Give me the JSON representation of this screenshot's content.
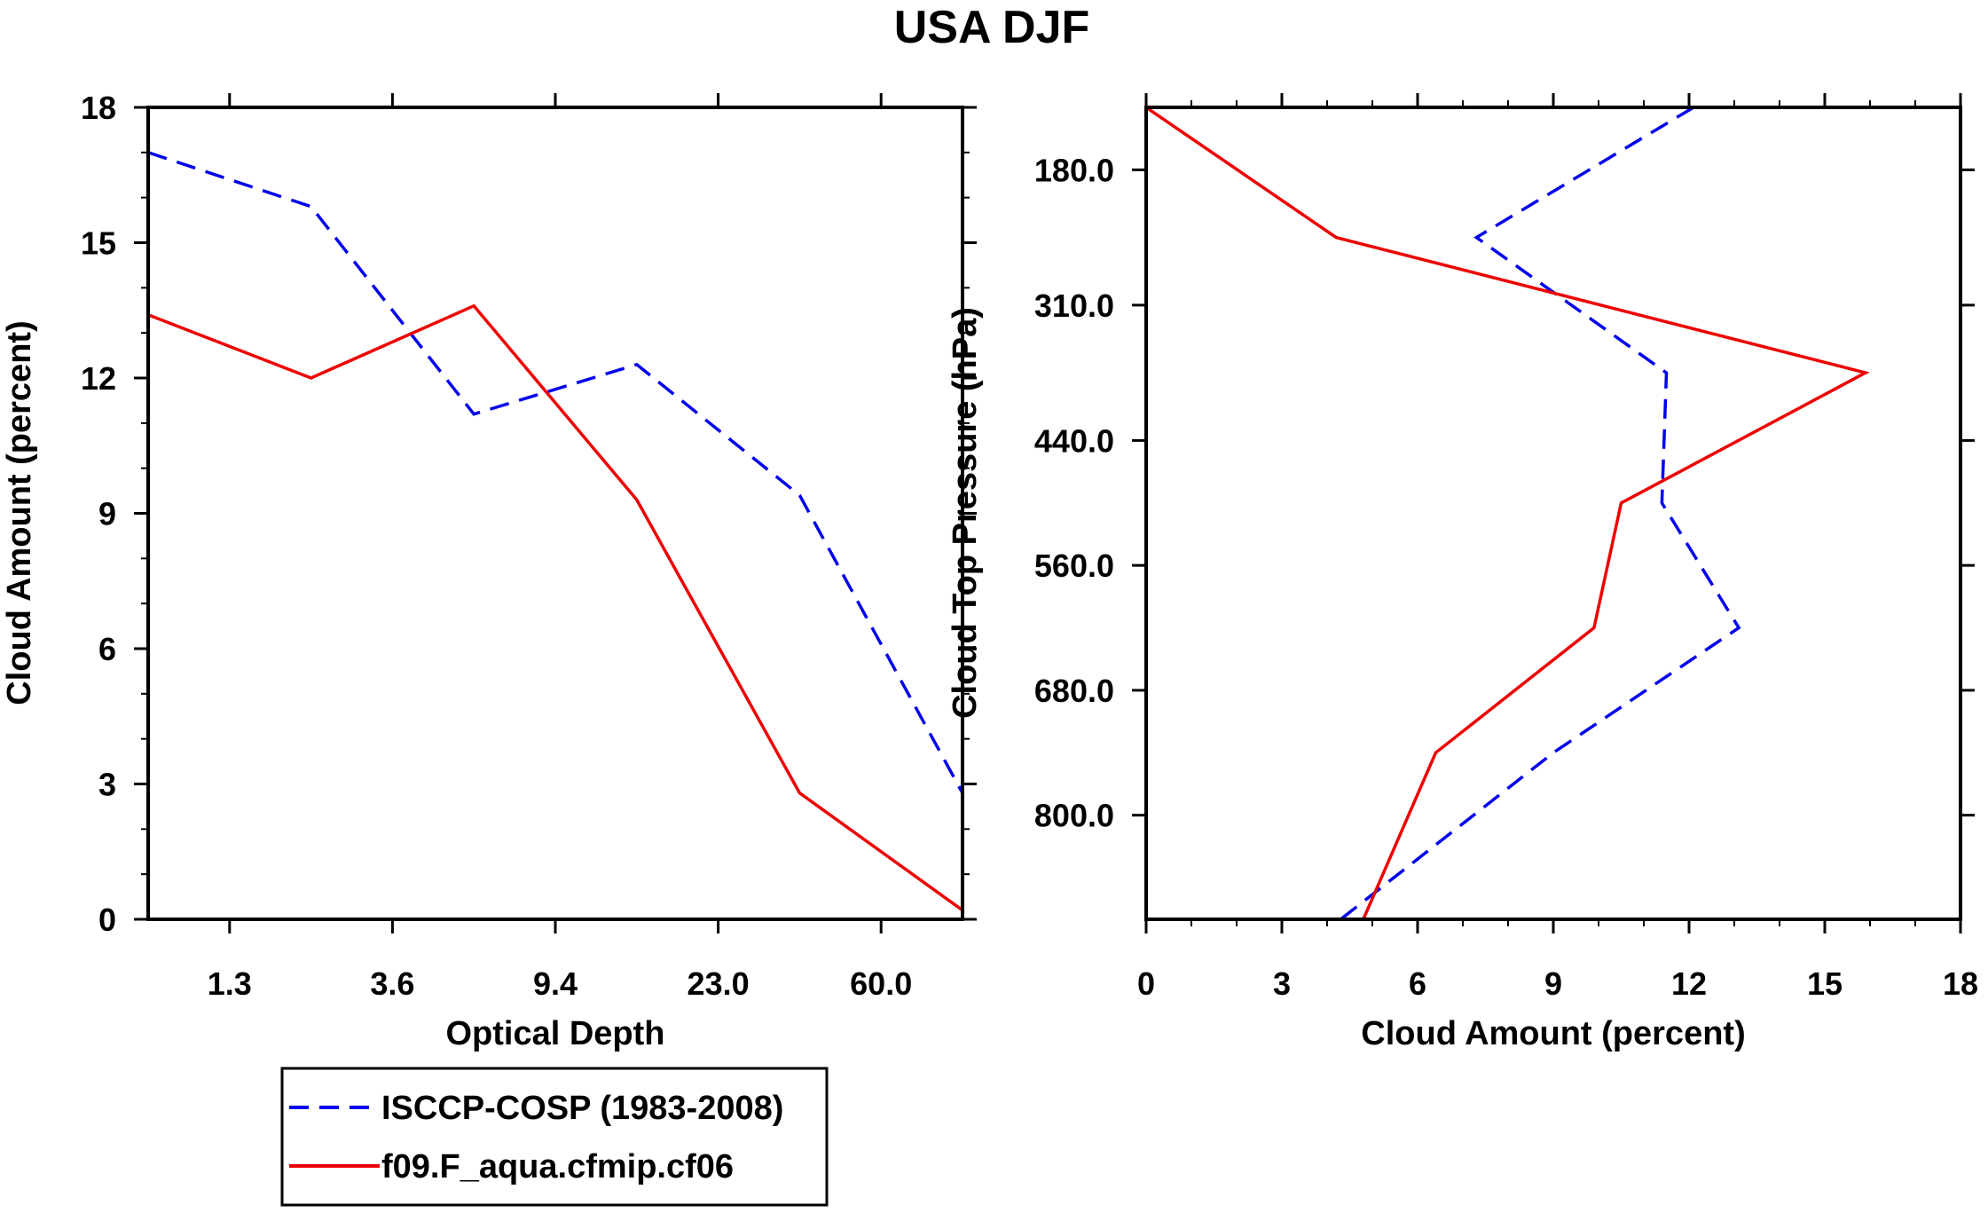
{
  "title": "USA DJF",
  "legend": {
    "entries": [
      {
        "label": "ISCCP-COSP (1983-2008)",
        "color": "#0000ee",
        "dash": "dashed"
      },
      {
        "label": "f09.F_aqua.cfmip.cf06",
        "color": "#ee0000",
        "dash": "solid"
      }
    ]
  },
  "chart_data": [
    {
      "type": "line",
      "xlabel": "Optical Depth",
      "ylabel": "Cloud Amount (percent)",
      "x_index": [
        0,
        1,
        2,
        3,
        4,
        5
      ],
      "x_tick_labels": [
        "1.3",
        "3.6",
        "9.4",
        "23.0",
        "60.0"
      ],
      "ylim": [
        0,
        18
      ],
      "y_ticks": [
        0,
        3,
        6,
        9,
        12,
        15,
        18
      ],
      "series": [
        {
          "name": "ISCCP-COSP (1983-2008)",
          "color": "#0000ee",
          "dash": "dashed",
          "values": [
            17.0,
            15.8,
            11.2,
            12.3,
            9.4,
            2.8
          ]
        },
        {
          "name": "f09.F_aqua.cfmip.cf06",
          "color": "#ee0000",
          "dash": "solid",
          "values": [
            13.4,
            12.0,
            13.6,
            9.3,
            2.8,
            0.2
          ]
        }
      ]
    },
    {
      "type": "line",
      "orientation": "vertical-profile",
      "xlabel": "Cloud Amount (percent)",
      "ylabel": "Cloud Top Pressure (hPa)",
      "xlim": [
        0,
        18
      ],
      "x_ticks": [
        0,
        3,
        6,
        9,
        12,
        15,
        18
      ],
      "ylim_hpa": [
        120,
        900
      ],
      "y_ticks": [
        180,
        310,
        440,
        560,
        680,
        800
      ],
      "y_tick_labels": [
        "180.0",
        "310.0",
        "440.0",
        "560.0",
        "680.0",
        "800.0"
      ],
      "pressure_levels": [
        120,
        245,
        375,
        500,
        620,
        740,
        900
      ],
      "series": [
        {
          "name": "ISCCP-COSP (1983-2008)",
          "color": "#0000ee",
          "dash": "dashed",
          "values": [
            12.1,
            7.3,
            11.5,
            11.4,
            13.1,
            9.0,
            4.3
          ]
        },
        {
          "name": "f09.F_aqua.cfmip.cf06",
          "color": "#ee0000",
          "dash": "solid",
          "values": [
            0.0,
            4.2,
            15.9,
            10.5,
            9.9,
            6.4,
            4.8
          ]
        }
      ]
    }
  ]
}
